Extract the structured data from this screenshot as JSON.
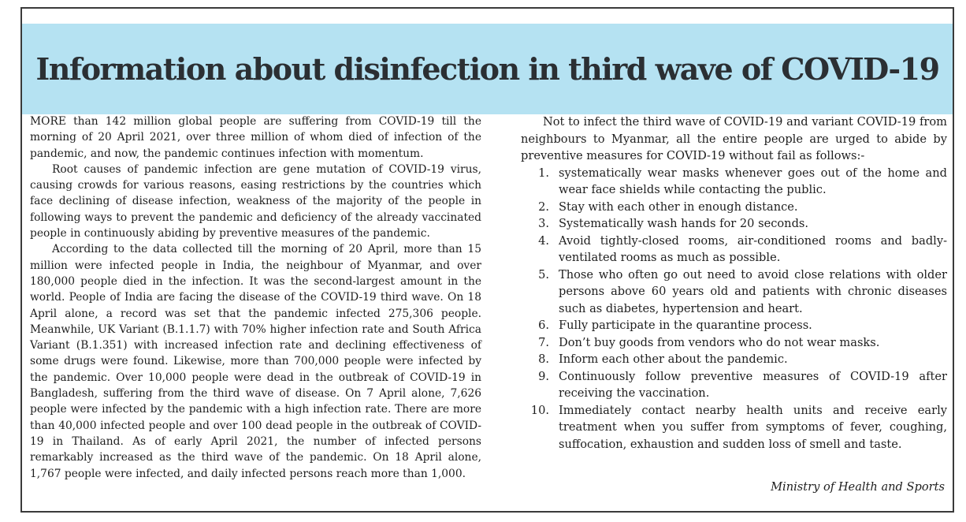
{
  "title": "Information about disinfection in third wave of COVID-19",
  "left_column": {
    "paragraphs": [
      "MORE than 142 million global people are suffering from COVID-19 till the morning of 20 April 2021, over three million of whom died of infection of the pandemic, and now, the pandemic continues infection with momentum.",
      "Root causes of pandemic infection are gene mutation of COVID-19 virus, causing crowds for various reasons, easing restrictions by the countries which face declining of disease infection, weakness of the majority of the people in following ways to prevent the pandemic and deficiency of the already vaccinated people in continuously abiding by preventive measures of the pandemic.",
      "According to the data collected till the morning of 20 April, more than 15 million were infected people in India, the neighbour of Myanmar, and over 180,000 people died in the infection. It was the second-largest amount in the world. People of India are facing the disease of the COVID-19 third wave. On 18 April alone, a record was set that the pandemic infected 275,306 people. Meanwhile, UK Variant (B.1.1.7) with 70% higher infection rate and South Africa Variant (B.1.351) with increased infection rate and declining effectiveness of some drugs were found. Likewise, more than 700,000 people were infected by the pandemic. Over 10,000 people were dead in the outbreak of COVID-19 in Bangladesh, suffering from the third wave of disease. On 7 April alone, 7,626 people were infected by the pandemic with a high infection rate. There are more than 40,000 infected people and over 100 dead people in the outbreak of COVID-19 in Thailand. As of early April 2021, the number of infected persons remarkably increased as the third wave of the pandemic. On 18 April alone, 1,767 people were infected, and daily infected persons reach more than 1,000."
    ]
  },
  "right_column": {
    "intro": "Not to infect the third wave of COVID-19 and variant COVID-19 from neighbours to Myanmar, all the entire people are urged to abide by preventive measures for COVID-19 without fail as follows:-",
    "measures": [
      {
        "num": "1.",
        "text": "systematically wear masks whenever goes out of the home and wear face shields while contacting the public."
      },
      {
        "num": "2.",
        "text": "Stay with each other in enough distance."
      },
      {
        "num": "3.",
        "text": "Systematically wash hands for 20 seconds."
      },
      {
        "num": "4.",
        "text": "Avoid tightly-closed rooms, air-conditioned rooms and badly-ventilated rooms as much as possible."
      },
      {
        "num": "5.",
        "text": "Those who often go out need to avoid close relations with older persons above 60 years old and patients with chronic diseases such as diabetes, hypertension and heart."
      },
      {
        "num": "6.",
        "text": "Fully participate in the quarantine process."
      },
      {
        "num": "7.",
        "text": "Don’t buy goods from vendors who do not wear masks."
      },
      {
        "num": "8.",
        "text": "Inform each other about the pandemic."
      },
      {
        "num": "9.",
        "text": "Continuously follow preventive measures of COVID-19 after receiving the vaccination."
      },
      {
        "num": "10.",
        "text": "Immediately contact nearby health units and receive early treatment when you suffer from symptoms of fever, coughing, suffocation, exhaustion and sudden loss of smell and taste."
      }
    ],
    "signature": "Ministry of Health and Sports"
  },
  "colors": {
    "banner": "#b5e2f2",
    "title_text": "#2b2f33",
    "border": "#3a3a3a"
  }
}
